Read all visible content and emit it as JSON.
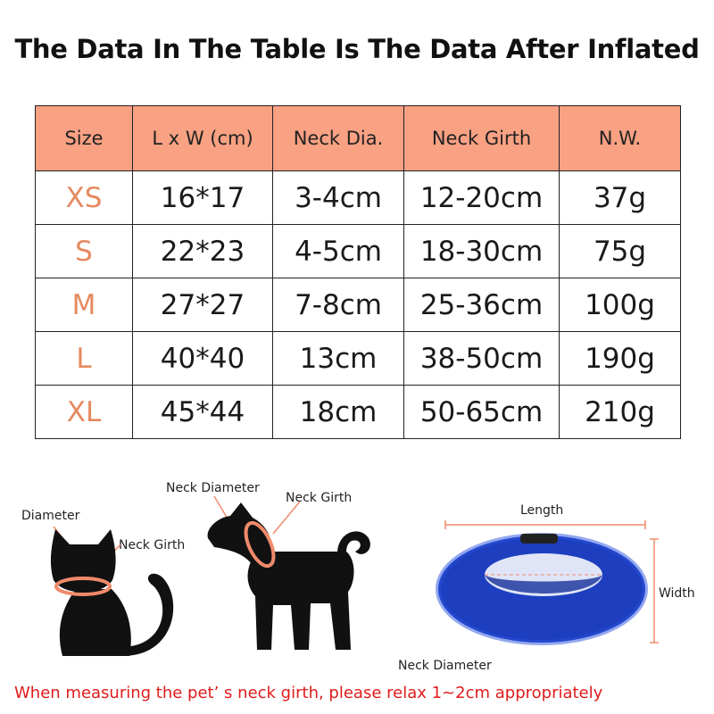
{
  "title": "The Data In The Table Is The Data After Inflated",
  "table": {
    "headers": [
      "Size",
      "L x W (cm)",
      "Neck Dia.",
      "Neck Girth",
      "N.W."
    ],
    "rows": [
      [
        "XS",
        "16*17",
        "3-4cm",
        "12-20cm",
        "37g"
      ],
      [
        "S",
        "22*23",
        "4-5cm",
        "18-30cm",
        "75g"
      ],
      [
        "M",
        "27*27",
        "7-8cm",
        "25-36cm",
        "100g"
      ],
      [
        "L",
        "40*40",
        "13cm",
        "38-50cm",
        "190g"
      ],
      [
        "XL",
        "45*44",
        "18cm",
        "50-65cm",
        "210g"
      ]
    ]
  },
  "cat_diagram": {
    "diameter_label": "Diameter",
    "neck_girth_label": "Neck Girth",
    "icon": "cat-silhouette-icon"
  },
  "dog_diagram": {
    "neck_diameter_label": "Neck Diameter",
    "neck_girth_label": "Neck Girth",
    "icon": "dog-silhouette-icon"
  },
  "collar_diagram": {
    "length_label": "Length",
    "width_label": "Width",
    "neck_diameter_label": "Neck Diameter",
    "icon": "inflatable-collar-icon"
  },
  "note": "When measuring the pet’ s neck girth, please relax 1~2cm appropriately",
  "colors": {
    "header_bg": "#f9a183",
    "size_text": "#e58a5f",
    "note_text": "#e01b1b",
    "collar_blue": "#1d3fbf",
    "measure_ring": "#f08a6a"
  }
}
